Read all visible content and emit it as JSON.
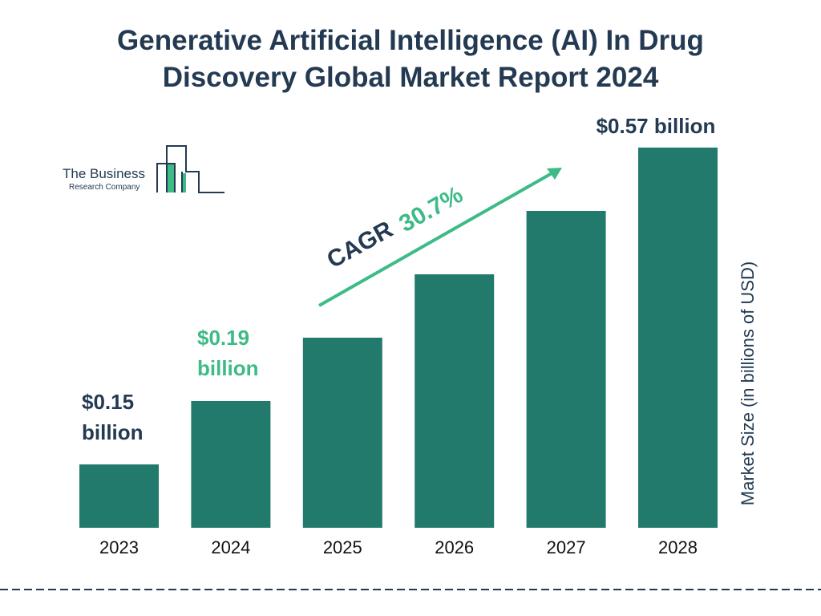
{
  "title_line1": "Generative Artificial Intelligence (AI) In Drug",
  "title_line2": "Discovery Global Market Report 2024",
  "logo": {
    "line1": "The Business",
    "line2": "Research Company"
  },
  "colors": {
    "bar": "#217a6b",
    "accent": "#3dbb87",
    "text": "#233a52"
  },
  "cagr": {
    "label": "CAGR",
    "value": "30.7%"
  },
  "chart_data": {
    "type": "bar",
    "categories": [
      "2023",
      "2024",
      "2025",
      "2026",
      "2027",
      "2028"
    ],
    "values": [
      0.15,
      0.19,
      0.25,
      0.33,
      0.43,
      0.57
    ],
    "ylabel": "Market Size (in billions of USD)",
    "data_labels": [
      {
        "category": "2023",
        "line1": "$0.15",
        "line2": "billion"
      },
      {
        "category": "2024",
        "line1": "$0.19",
        "line2": "billion"
      },
      {
        "category": "2028",
        "line1": "$0.57 billion",
        "line2": ""
      }
    ],
    "grid": false
  }
}
